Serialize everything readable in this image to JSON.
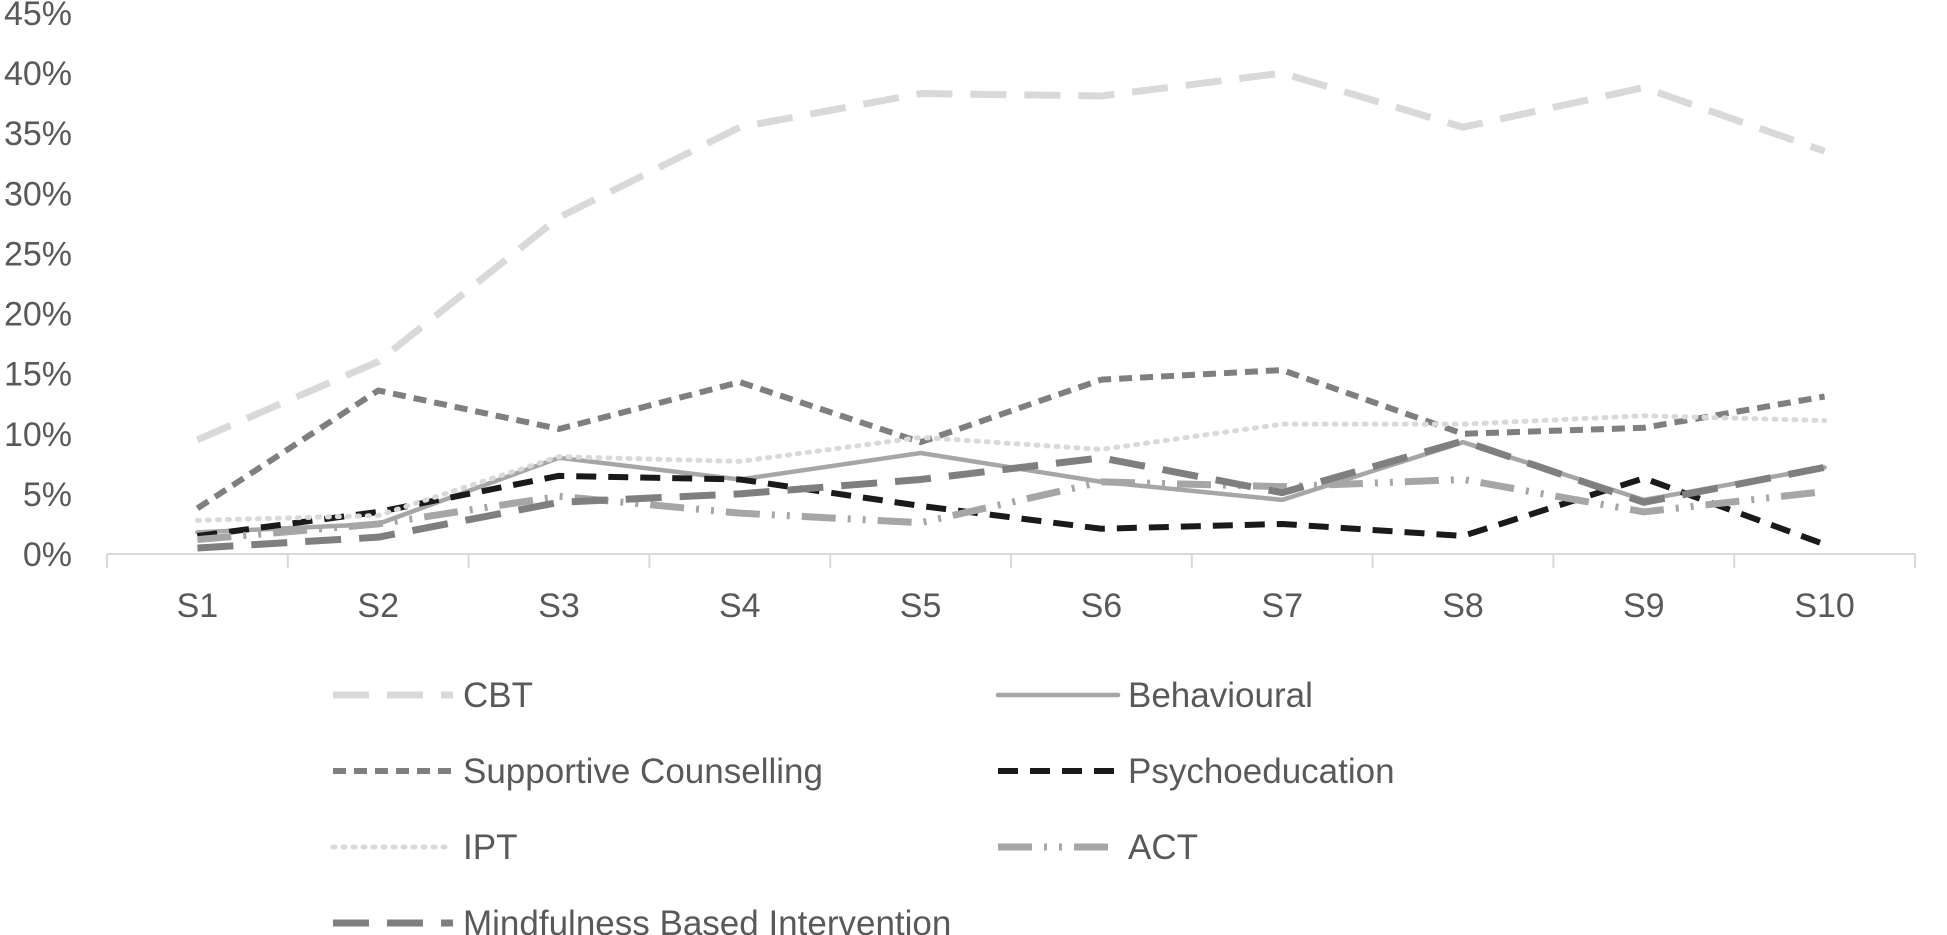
{
  "chart_data": {
    "type": "line",
    "title": "",
    "xlabel": "",
    "ylabel": "",
    "ylim": [
      0,
      45
    ],
    "y_ticks": [
      0,
      5,
      10,
      15,
      20,
      25,
      30,
      35,
      40,
      45
    ],
    "y_tick_labels": [
      "0%",
      "5%",
      "10%",
      "15%",
      "20%",
      "25%",
      "30%",
      "35%",
      "40%",
      "45%"
    ],
    "categories": [
      "S1",
      "S2",
      "S3",
      "S4",
      "S5",
      "S6",
      "S7",
      "S8",
      "S9",
      "S10"
    ],
    "grid": false,
    "legend_position": "bottom",
    "series": [
      {
        "name": "CBT",
        "color": "#d9d9d9",
        "dash": "long-dash",
        "values": [
          9.5,
          16.0,
          28.0,
          35.5,
          38.3,
          38.1,
          40.0,
          35.5,
          38.8,
          33.5
        ]
      },
      {
        "name": "Behavioural",
        "color": "#a6a6a6",
        "dash": "solid",
        "values": [
          1.8,
          2.5,
          8.0,
          6.2,
          8.4,
          6.0,
          4.5,
          9.3,
          4.5,
          7.2
        ]
      },
      {
        "name": "Supportive Counselling",
        "color": "#7f7f7f",
        "dash": "short-dash",
        "values": [
          3.8,
          13.6,
          10.4,
          14.3,
          9.3,
          14.5,
          15.3,
          10.0,
          10.5,
          13.1
        ]
      },
      {
        "name": "Psychoeducation",
        "color": "#1a1a1a",
        "dash": "dash",
        "values": [
          1.5,
          3.5,
          6.5,
          6.2,
          4.0,
          2.1,
          2.5,
          1.5,
          6.3,
          0.8
        ]
      },
      {
        "name": "IPT",
        "color": "#d9d9d9",
        "dash": "dot",
        "values": [
          2.8,
          3.2,
          8.1,
          7.7,
          9.7,
          8.7,
          10.8,
          10.8,
          11.5,
          11.1
        ]
      },
      {
        "name": "ACT",
        "color": "#a6a6a6",
        "dash": "long-dash-dot-dot",
        "values": [
          1.2,
          2.5,
          4.8,
          3.4,
          2.6,
          6.0,
          5.6,
          6.2,
          3.5,
          5.2
        ]
      },
      {
        "name": "Mindfulness Based Intervention",
        "color": "#7f7f7f",
        "dash": "long-dash",
        "values": [
          0.5,
          1.4,
          4.3,
          5.0,
          6.2,
          8.0,
          5.1,
          9.4,
          4.3,
          7.2
        ]
      }
    ]
  }
}
